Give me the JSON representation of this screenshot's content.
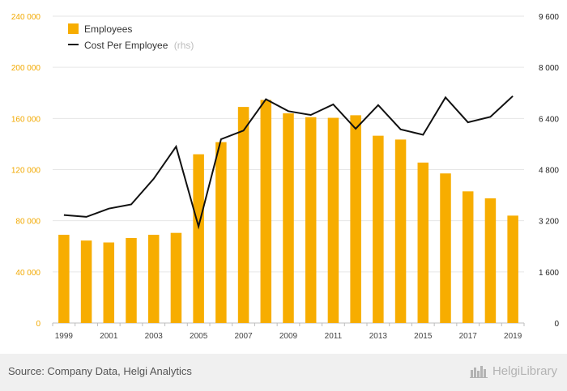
{
  "chart_data": {
    "type": "bar+line",
    "categories": [
      "1999",
      "2000",
      "2001",
      "2002",
      "2003",
      "2004",
      "2005",
      "2006",
      "2007",
      "2008",
      "2009",
      "2010",
      "2011",
      "2012",
      "2013",
      "2014",
      "2015",
      "2016",
      "2017",
      "2018",
      "2019"
    ],
    "x_tick_labels": [
      "1999",
      "2001",
      "2003",
      "2005",
      "2007",
      "2009",
      "2011",
      "2013",
      "2015",
      "2017",
      "2019"
    ],
    "series": [
      {
        "name": "Employees",
        "kind": "bar",
        "axis": "left",
        "color": "#f7ad00",
        "values": [
          69000,
          64500,
          63000,
          66500,
          69000,
          70500,
          132000,
          141500,
          169000,
          174500,
          164000,
          161000,
          160500,
          162500,
          146500,
          143500,
          125500,
          117000,
          103000,
          97500,
          84000
        ]
      },
      {
        "name": "Cost Per Employee",
        "note": "(rhs)",
        "kind": "line",
        "axis": "right",
        "color": "#111111",
        "values": [
          3380,
          3320,
          3580,
          3710,
          4510,
          5520,
          3020,
          5750,
          6020,
          7000,
          6630,
          6510,
          6840,
          6080,
          6820,
          6060,
          5890,
          7060,
          6280,
          6450,
          7100
        ]
      }
    ],
    "y_left": {
      "min": 0,
      "max": 240000,
      "ticks": [
        0,
        40000,
        80000,
        120000,
        160000,
        200000,
        240000
      ],
      "tick_labels": [
        "0",
        "40 000",
        "80 000",
        "120 000",
        "160 000",
        "200 000",
        "240 000"
      ]
    },
    "y_right": {
      "min": 0,
      "max": 9600,
      "ticks": [
        0,
        1600,
        3200,
        4800,
        6400,
        8000,
        9600
      ],
      "tick_labels": [
        "0",
        "1 600",
        "3 200",
        "4 800",
        "6 400",
        "8 000",
        "9 600"
      ]
    },
    "grid": true,
    "legend_position": "top-left"
  },
  "legend": {
    "employees_label": "Employees",
    "cost_label": "Cost Per Employee",
    "cost_note": "(rhs)"
  },
  "footer": {
    "source": "Source: Company Data, Helgi Analytics",
    "brand": "HelgiLibrary"
  },
  "colors": {
    "bar": "#f7ad00",
    "line": "#111111",
    "left_axis_text": "#f2a900",
    "grid": "#e6e6e6",
    "footer_bg": "#f0f0f0"
  }
}
